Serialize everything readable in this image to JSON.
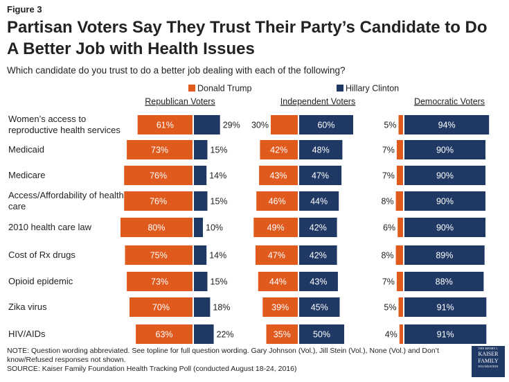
{
  "chart_data": {
    "type": "diverging-bar",
    "figure_label": "Figure 3",
    "title": "Partisan Voters Say They Trust Their Party’s Candidate to Do A Better Job with Health Issues",
    "subtitle": "Which candidate do you trust to do a better job dealing with each of the following?",
    "legend": [
      {
        "name": "Donald Trump",
        "color": "#e05a1e"
      },
      {
        "name": "Hillary Clinton",
        "color": "#1f3864"
      }
    ],
    "categories": [
      "Women’s access to reproductive health services",
      "Medicaid",
      "Medicare",
      "Access/Affordability of health care",
      "2010 health care law",
      "Cost of Rx drugs",
      "Opioid epidemic",
      "Zika virus",
      "HIV/AIDs"
    ],
    "panels": [
      {
        "title": "Republican Voters",
        "series": [
          {
            "values": [
              61,
              73,
              76,
              76,
              80,
              75,
              73,
              70,
              63
            ],
            "value_labels": [
              "61%",
              "73%",
              "76%",
              "76%",
              "80%",
              "75%",
              "73%",
              "70%",
              "63%"
            ]
          },
          {
            "values": [
              29,
              15,
              14,
              15,
              10,
              14,
              15,
              18,
              22
            ],
            "value_labels": [
              "29%",
              "15%",
              "14%",
              "15%",
              "10%",
              "14%",
              "15%",
              "18%",
              "22%"
            ]
          }
        ]
      },
      {
        "title": "Independent Voters",
        "series": [
          {
            "values": [
              30,
              42,
              43,
              46,
              49,
              47,
              44,
              39,
              35
            ],
            "value_labels": [
              "30%",
              "42%",
              "43%",
              "46%",
              "49%",
              "47%",
              "44%",
              "39%",
              "35%"
            ]
          },
          {
            "values": [
              60,
              48,
              47,
              44,
              42,
              42,
              43,
              45,
              50
            ],
            "value_labels": [
              "60%",
              "48%",
              "47%",
              "44%",
              "42%",
              "42%",
              "43%",
              "45%",
              "50%"
            ]
          }
        ]
      },
      {
        "title": "Democratic Voters",
        "series": [
          {
            "values": [
              5,
              7,
              7,
              8,
              6,
              8,
              7,
              5,
              4
            ],
            "value_labels": [
              "5%",
              "7%",
              "7%",
              "8%",
              "6%",
              "8%",
              "7%",
              "5%",
              "4%"
            ]
          },
          {
            "values": [
              94,
              90,
              90,
              90,
              90,
              89,
              88,
              91,
              91
            ],
            "value_labels": [
              "94%",
              "90%",
              "90%",
              "90%",
              "90%",
              "89%",
              "88%",
              "91%",
              "91%"
            ]
          }
        ]
      }
    ],
    "note": "NOTE: Question wording abbreviated. See topline for full question wording. Gary Johnson (Vol.), Jill Stein (Vol.), None (Vol.) and Don’t know/Refused responses not shown.",
    "source": "SOURCE: Kaiser Family Foundation Health Tracking Poll (conducted August 18-24, 2016)",
    "logo": [
      "THE HENRY J.",
      "KAISER",
      "FAMILY",
      "FOUNDATION"
    ]
  }
}
